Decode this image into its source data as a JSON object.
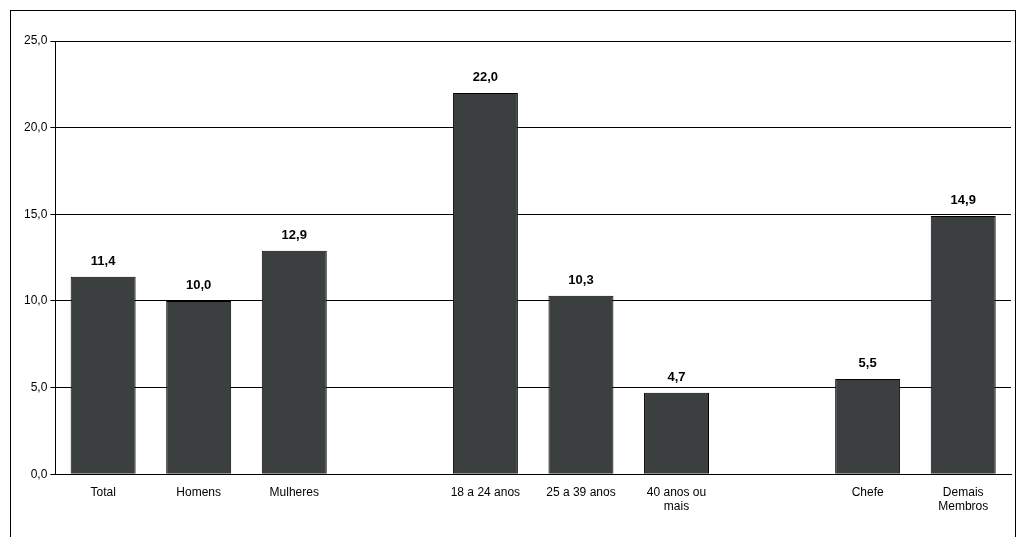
{
  "chart_data": {
    "type": "bar",
    "categories": [
      "Total",
      "Homens",
      "Mulheres",
      null,
      "18 a 24 anos",
      "25 a 39 anos",
      "40 anos ou mais",
      null,
      "Chefe",
      "Demais Membros"
    ],
    "values": [
      11.4,
      10.0,
      12.9,
      null,
      22.0,
      10.3,
      4.7,
      null,
      5.5,
      14.9
    ],
    "value_labels": [
      "11,4",
      "10,0",
      "12,9",
      null,
      "22,0",
      "10,3",
      "4,7",
      null,
      "5,5",
      "14,9"
    ],
    "color": "#3b3f3f",
    "ylim": [
      0,
      25
    ],
    "yticks": [
      {
        "value": 0,
        "label": "0,0"
      },
      {
        "value": 5,
        "label": "5,0"
      },
      {
        "value": 10,
        "label": "10,0"
      },
      {
        "value": 15,
        "label": "15,0"
      },
      {
        "value": 20,
        "label": "20,0"
      },
      {
        "value": 25,
        "label": "25,0"
      }
    ],
    "grid": "y",
    "legend": false
  }
}
